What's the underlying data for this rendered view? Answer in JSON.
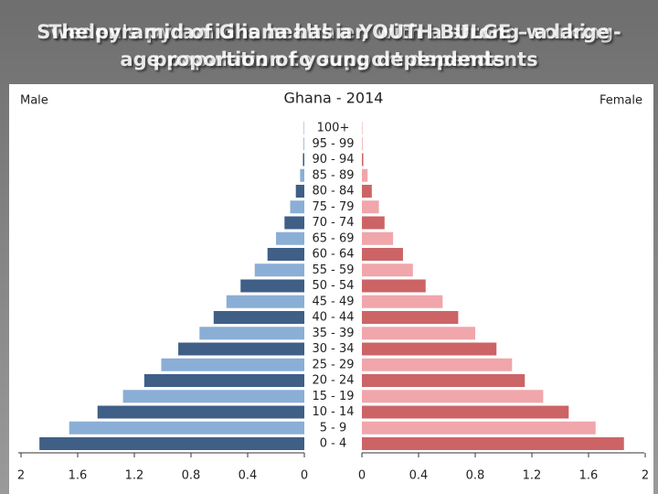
{
  "slide": {
    "titles": [
      "Sweden's pyramid is healthier, with a strong working-age population to support dependents",
      "The pyramid of Ghana has a YOUTH BULGE – a large proportion of young dependents"
    ]
  },
  "chart_data": {
    "type": "pyramid",
    "title": "Ghana - 2014",
    "categories": [
      "0 - 4",
      "5 - 9",
      "10 - 14",
      "15 - 19",
      "20 - 24",
      "25 - 29",
      "30 - 34",
      "35 - 39",
      "40 - 44",
      "45 - 49",
      "50 - 54",
      "55 - 59",
      "60 - 64",
      "65 - 69",
      "70 - 74",
      "75 - 79",
      "80 - 84",
      "85 - 89",
      "90 - 94",
      "95 - 99",
      "100+"
    ],
    "series": [
      {
        "name": "Male",
        "colors": [
          "#3f5f87",
          "#8aaed6"
        ],
        "values": [
          1.87,
          1.66,
          1.46,
          1.28,
          1.13,
          1.01,
          0.89,
          0.74,
          0.64,
          0.55,
          0.45,
          0.35,
          0.26,
          0.2,
          0.14,
          0.1,
          0.06,
          0.03,
          0.01,
          0.005,
          0.002
        ]
      },
      {
        "name": "Female",
        "colors": [
          "#cc6466",
          "#f0a6aa"
        ],
        "values": [
          1.85,
          1.65,
          1.46,
          1.28,
          1.15,
          1.06,
          0.95,
          0.8,
          0.68,
          0.57,
          0.45,
          0.36,
          0.29,
          0.22,
          0.16,
          0.12,
          0.07,
          0.04,
          0.01,
          0.005,
          0.002
        ]
      }
    ],
    "xlim": [
      0,
      2
    ],
    "xticks": [
      0,
      0.4,
      0.8,
      1.2,
      1.6,
      2
    ]
  }
}
